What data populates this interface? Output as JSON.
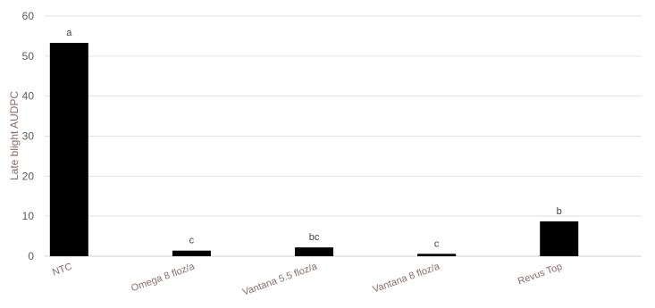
{
  "chart_data": {
    "type": "bar",
    "categories": [
      "NTC",
      "Omega 8 floz/a",
      "Vantana 5.5 floz/a",
      "Vantana 8 floz/a",
      "Revus Top"
    ],
    "values": [
      53.3,
      1.4,
      2.2,
      0.6,
      8.7
    ],
    "data_labels": [
      "a",
      "c",
      "bc",
      "c",
      "b"
    ],
    "title": "",
    "xlabel": "",
    "ylabel": "Late blight AUDPC",
    "ylim": [
      0,
      60
    ],
    "yticks": [
      0,
      10,
      20,
      30,
      40,
      50,
      60
    ],
    "grid": true,
    "legend": "none",
    "bar_color": "#000000"
  }
}
